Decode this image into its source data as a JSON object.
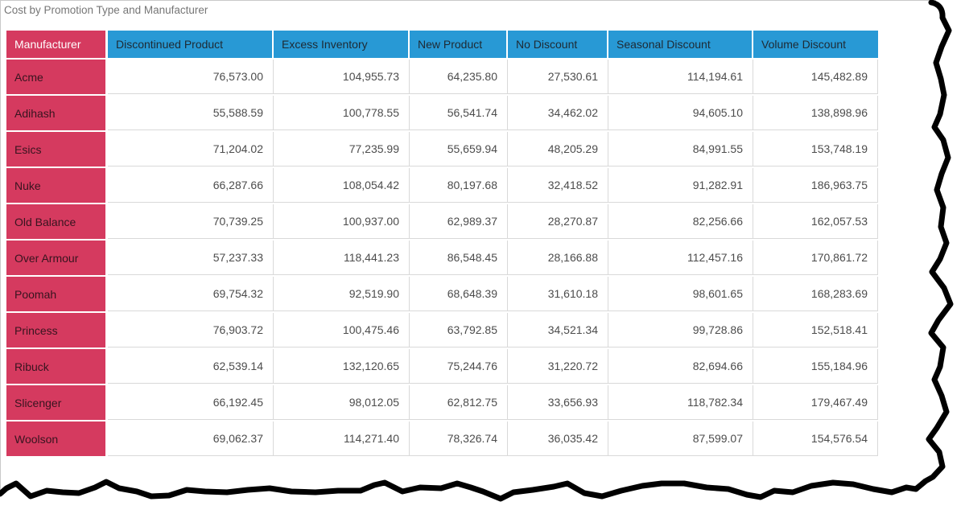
{
  "title": "Cost by Promotion Type and Manufacturer",
  "colors": {
    "header_blue": "#2899d5",
    "row_pink": "#d53a5f",
    "grid_line": "#d9d9d9",
    "number_text": "#4c4c4c",
    "title_text": "#767676",
    "torn_edge": "#000000"
  },
  "table": {
    "columns": [
      "Manufacturer",
      "Discontinued Product",
      "Excess Inventory",
      "New Product",
      "No Discount",
      "Seasonal Discount",
      "Volume Discount"
    ],
    "rows": [
      {
        "manufacturer": "Acme",
        "values": [
          "76,573.00",
          "104,955.73",
          "64,235.80",
          "27,530.61",
          "114,194.61",
          "145,482.89"
        ]
      },
      {
        "manufacturer": "Adihash",
        "values": [
          "55,588.59",
          "100,778.55",
          "56,541.74",
          "34,462.02",
          "94,605.10",
          "138,898.96"
        ]
      },
      {
        "manufacturer": "Esics",
        "values": [
          "71,204.02",
          "77,235.99",
          "55,659.94",
          "48,205.29",
          "84,991.55",
          "153,748.19"
        ]
      },
      {
        "manufacturer": "Nuke",
        "values": [
          "66,287.66",
          "108,054.42",
          "80,197.68",
          "32,418.52",
          "91,282.91",
          "186,963.75"
        ]
      },
      {
        "manufacturer": "Old Balance",
        "values": [
          "70,739.25",
          "100,937.00",
          "62,989.37",
          "28,270.87",
          "82,256.66",
          "162,057.53"
        ]
      },
      {
        "manufacturer": "Over Armour",
        "values": [
          "57,237.33",
          "118,441.23",
          "86,548.45",
          "28,166.88",
          "112,457.16",
          "170,861.72"
        ]
      },
      {
        "manufacturer": "Poomah",
        "values": [
          "69,754.32",
          "92,519.90",
          "68,648.39",
          "31,610.18",
          "98,601.65",
          "168,283.69"
        ]
      },
      {
        "manufacturer": "Princess",
        "values": [
          "76,903.72",
          "100,475.46",
          "63,792.85",
          "34,521.34",
          "99,728.86",
          "152,518.41"
        ]
      },
      {
        "manufacturer": "Ribuck",
        "values": [
          "62,539.14",
          "132,120.65",
          "75,244.76",
          "31,220.72",
          "82,694.66",
          "155,184.96"
        ]
      },
      {
        "manufacturer": "Slicenger",
        "values": [
          "66,192.45",
          "98,012.05",
          "62,812.75",
          "33,656.93",
          "118,782.34",
          "179,467.49"
        ]
      },
      {
        "manufacturer": "Woolson",
        "values": [
          "69,062.37",
          "114,271.40",
          "78,326.74",
          "36,035.42",
          "87,599.07",
          "154,576.54"
        ]
      }
    ]
  }
}
